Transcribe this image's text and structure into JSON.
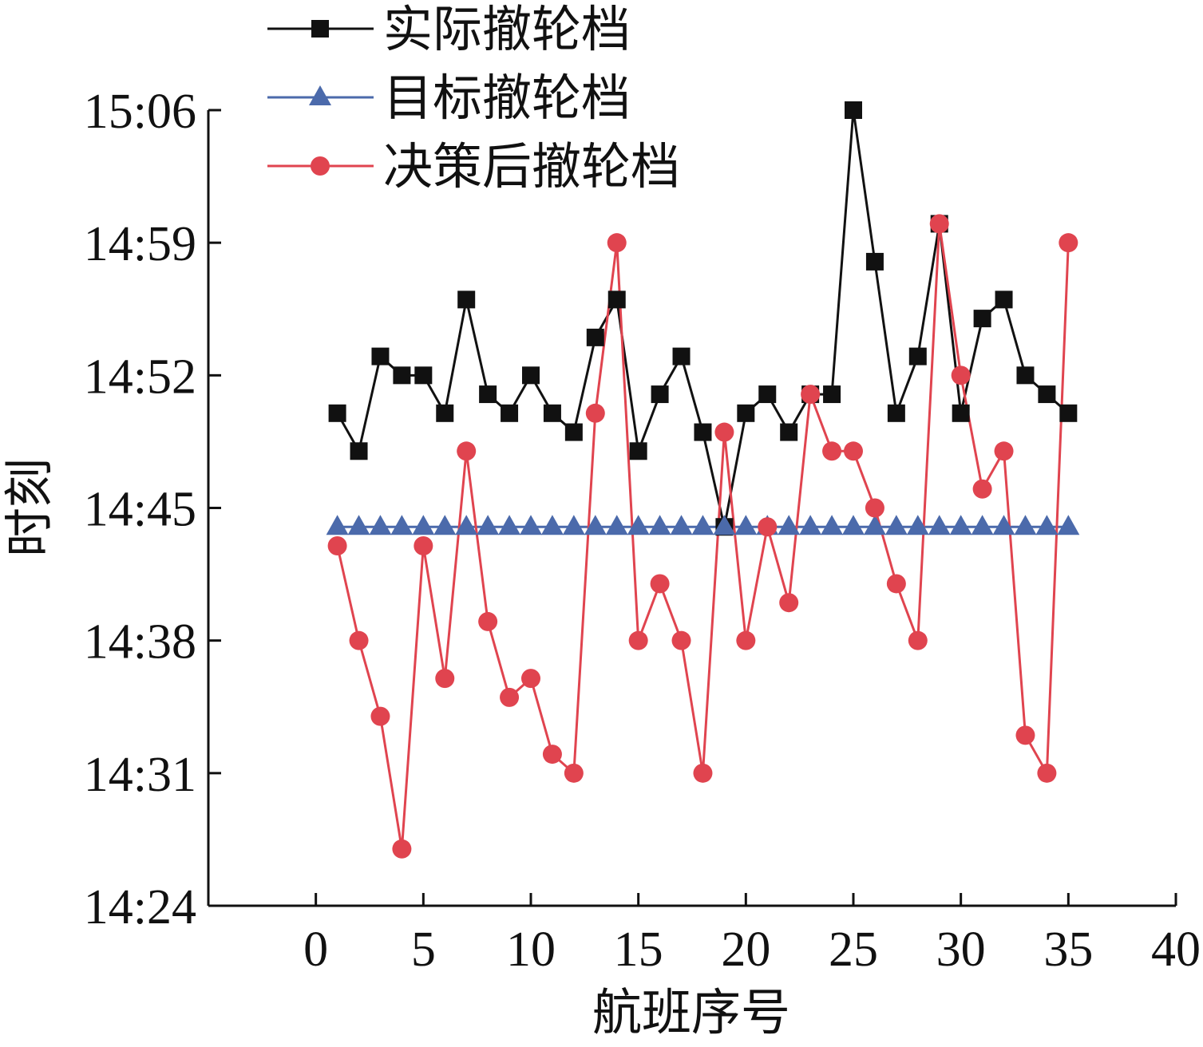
{
  "chart_data": {
    "type": "line",
    "title": "",
    "xlabel": "航班序号",
    "ylabel": "时刻",
    "xlim": [
      -5,
      40
    ],
    "ylim": [
      "14:24",
      "15:06"
    ],
    "xticks": [
      "0",
      "5",
      "10",
      "15",
      "20",
      "25",
      "30",
      "35",
      "40"
    ],
    "yticks": [
      "14:24",
      "14:31",
      "14:38",
      "14:45",
      "14:52",
      "14:59",
      "15:06"
    ],
    "grid": false,
    "legend_position": "top-left",
    "x": [
      1,
      2,
      3,
      4,
      5,
      6,
      7,
      8,
      9,
      10,
      11,
      12,
      13,
      14,
      15,
      16,
      17,
      18,
      19,
      20,
      21,
      22,
      23,
      24,
      25,
      26,
      27,
      28,
      29,
      30,
      31,
      32,
      33,
      34,
      35
    ],
    "series": [
      {
        "name": "实际撤轮档",
        "color": "#111111",
        "marker": "square",
        "values": [
          "14:50",
          "14:48",
          "14:53",
          "14:52",
          "14:52",
          "14:50",
          "14:56",
          "14:51",
          "14:50",
          "14:52",
          "14:50",
          "14:49",
          "14:54",
          "14:56",
          "14:48",
          "14:51",
          "14:53",
          "14:49",
          "14:44",
          "14:50",
          "14:51",
          "14:49",
          "14:51",
          "14:51",
          "15:06",
          "14:58",
          "14:50",
          "14:53",
          "15:00",
          "14:50",
          "14:55",
          "14:56",
          "14:52",
          "14:51",
          "14:50"
        ]
      },
      {
        "name": "目标撤轮档",
        "color": "#4b6aab",
        "marker": "triangle",
        "values": [
          "14:44",
          "14:44",
          "14:44",
          "14:44",
          "14:44",
          "14:44",
          "14:44",
          "14:44",
          "14:44",
          "14:44",
          "14:44",
          "14:44",
          "14:44",
          "14:44",
          "14:44",
          "14:44",
          "14:44",
          "14:44",
          "14:44",
          "14:44",
          "14:44",
          "14:44",
          "14:44",
          "14:44",
          "14:44",
          "14:44",
          "14:44",
          "14:44",
          "14:44",
          "14:44",
          "14:44",
          "14:44",
          "14:44",
          "14:44",
          "14:44"
        ]
      },
      {
        "name": "决策后撤轮档",
        "color": "#e0444f",
        "marker": "circle",
        "values": [
          "14:43",
          "14:38",
          "14:34",
          "14:27",
          "14:43",
          "14:36",
          "14:48",
          "14:39",
          "14:35",
          "14:36",
          "14:32",
          "14:31",
          "14:50",
          "14:59",
          "14:38",
          "14:41",
          "14:38",
          "14:31",
          "14:49",
          "14:38",
          "14:44",
          "14:40",
          "14:51",
          "14:48",
          "14:48",
          "14:45",
          "14:41",
          "14:38",
          "15:00",
          "14:52",
          "14:46",
          "14:48",
          "14:33",
          "14:31",
          "14:59"
        ]
      }
    ]
  }
}
